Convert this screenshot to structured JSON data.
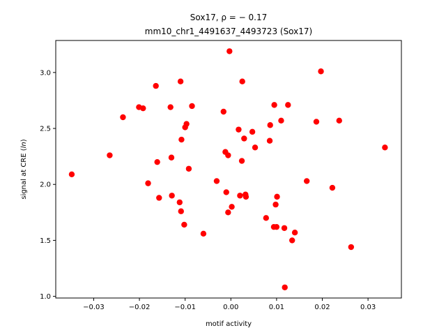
{
  "chart_data": {
    "type": "scatter",
    "title_line1": "Sox17, ρ = − 0.17",
    "title_line2": "mm10_chr1_4491637_4493723 (Sox17)",
    "xlabel": "motif activity",
    "ylabel_prefix": "signal at CRE (",
    "ylabel_italic": "ln",
    "ylabel_suffix": ")",
    "xlim": [
      -0.0383,
      0.0373
    ],
    "ylim": [
      0.985,
      3.286
    ],
    "xticks": [
      -0.03,
      -0.02,
      -0.01,
      0.0,
      0.01,
      0.02,
      0.03
    ],
    "xtick_labels": [
      "−0.03",
      "−0.02",
      "−0.01",
      "0.00",
      "0.01",
      "0.02",
      "0.03"
    ],
    "yticks": [
      1.0,
      1.5,
      2.0,
      2.5,
      3.0
    ],
    "ytick_labels": [
      "1.0",
      "1.5",
      "2.0",
      "2.5",
      "3.0"
    ],
    "marker_color": "#ff0000",
    "grid": false,
    "points": [
      {
        "x": -0.0348,
        "y": 2.09
      },
      {
        "x": -0.0265,
        "y": 2.26
      },
      {
        "x": -0.0236,
        "y": 2.6
      },
      {
        "x": -0.0201,
        "y": 2.69
      },
      {
        "x": -0.0192,
        "y": 2.68
      },
      {
        "x": -0.0181,
        "y": 2.01
      },
      {
        "x": -0.0164,
        "y": 2.88
      },
      {
        "x": -0.0161,
        "y": 2.2
      },
      {
        "x": -0.0157,
        "y": 1.88
      },
      {
        "x": -0.0132,
        "y": 2.69
      },
      {
        "x": -0.013,
        "y": 2.24
      },
      {
        "x": -0.0129,
        "y": 1.9
      },
      {
        "x": -0.0112,
        "y": 1.84
      },
      {
        "x": -0.011,
        "y": 2.92
      },
      {
        "x": -0.0109,
        "y": 1.76
      },
      {
        "x": -0.0108,
        "y": 2.4
      },
      {
        "x": -0.0102,
        "y": 1.64
      },
      {
        "x": -0.01,
        "y": 2.51
      },
      {
        "x": -0.0097,
        "y": 2.54
      },
      {
        "x": -0.0092,
        "y": 2.14
      },
      {
        "x": -0.0085,
        "y": 2.7
      },
      {
        "x": -0.006,
        "y": 1.56
      },
      {
        "x": -0.0031,
        "y": 2.03
      },
      {
        "x": -0.0016,
        "y": 2.65
      },
      {
        "x": -0.0012,
        "y": 2.29
      },
      {
        "x": -0.001,
        "y": 1.93
      },
      {
        "x": -0.0006,
        "y": 2.26
      },
      {
        "x": -0.0006,
        "y": 1.75
      },
      {
        "x": -0.0003,
        "y": 3.19
      },
      {
        "x": 0.0002,
        "y": 1.8
      },
      {
        "x": 0.0017,
        "y": 2.49
      },
      {
        "x": 0.002,
        "y": 1.9
      },
      {
        "x": 0.0024,
        "y": 2.21
      },
      {
        "x": 0.0025,
        "y": 2.92
      },
      {
        "x": 0.0029,
        "y": 2.41
      },
      {
        "x": 0.0032,
        "y": 1.91
      },
      {
        "x": 0.0033,
        "y": 1.89
      },
      {
        "x": 0.0047,
        "y": 2.47
      },
      {
        "x": 0.0053,
        "y": 2.33
      },
      {
        "x": 0.0077,
        "y": 1.7
      },
      {
        "x": 0.0085,
        "y": 2.39
      },
      {
        "x": 0.0086,
        "y": 2.53
      },
      {
        "x": 0.0094,
        "y": 1.62
      },
      {
        "x": 0.0095,
        "y": 2.71
      },
      {
        "x": 0.0098,
        "y": 1.82
      },
      {
        "x": 0.01,
        "y": 1.62
      },
      {
        "x": 0.0101,
        "y": 1.89
      },
      {
        "x": 0.011,
        "y": 2.57
      },
      {
        "x": 0.0117,
        "y": 1.61
      },
      {
        "x": 0.0118,
        "y": 1.08
      },
      {
        "x": 0.0125,
        "y": 2.71
      },
      {
        "x": 0.0134,
        "y": 1.5
      },
      {
        "x": 0.014,
        "y": 1.57
      },
      {
        "x": 0.0166,
        "y": 2.03
      },
      {
        "x": 0.0187,
        "y": 2.56
      },
      {
        "x": 0.0197,
        "y": 3.01
      },
      {
        "x": 0.0222,
        "y": 1.97
      },
      {
        "x": 0.0237,
        "y": 2.57
      },
      {
        "x": 0.0263,
        "y": 1.44
      },
      {
        "x": 0.0337,
        "y": 2.33
      }
    ]
  }
}
